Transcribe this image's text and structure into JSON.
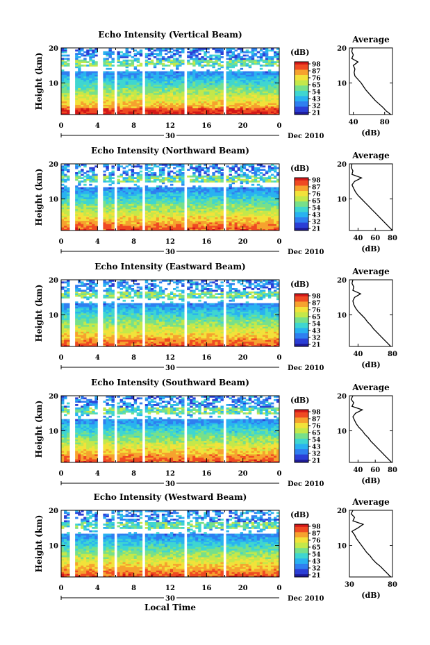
{
  "figure": {
    "xlabel": "Local Time",
    "date_label": "Dec 2010",
    "day_label": "30",
    "colorbar_unit": "(dB)",
    "avg_xlabel": "(dB)",
    "avg_title": "Average",
    "ylabel": "Height (km)",
    "height_ticks": [
      "20",
      "10"
    ],
    "time_ticks": [
      "0",
      "4",
      "8",
      "12",
      "16",
      "20",
      "0"
    ]
  },
  "colors": {
    "colormap": [
      "#1e1a96",
      "#2b3fd6",
      "#2f7ff0",
      "#29b2f0",
      "#3fd6d0",
      "#77e08a",
      "#c4e84a",
      "#f2e23a",
      "#f6a22e",
      "#ef4a22",
      "#d41818"
    ]
  },
  "chart_data": [
    {
      "type": "heatmap",
      "title": "Echo Intensity (Vertical Beam)",
      "xlabel": "Local Time",
      "ylabel": "Height (km)",
      "xlim": [
        0,
        24
      ],
      "ylim": [
        1,
        20
      ],
      "gaps_hours": [
        [
          1.0,
          1.5
        ],
        [
          4.0,
          4.6
        ],
        [
          5.7,
          6.2
        ],
        [
          8.8,
          9.3
        ],
        [
          13.4,
          13.9
        ],
        [
          17.8,
          18.3
        ]
      ],
      "colorbar": {
        "label": "(dB)",
        "ticks": [
          "98",
          "87",
          "76",
          "65",
          "54",
          "43",
          "32",
          "21"
        ]
      },
      "average_profile": {
        "title": "Average",
        "xlabel": "(dB)",
        "xticks": [
          40,
          80
        ],
        "xlim": [
          35,
          90
        ],
        "height_km": [
          1,
          2,
          3,
          4,
          5,
          6,
          7,
          8,
          9,
          10,
          11,
          12,
          13,
          14,
          15,
          16,
          17,
          18,
          19,
          20
        ],
        "db": [
          88,
          82,
          78,
          73,
          68,
          64,
          60,
          56,
          53,
          50,
          46,
          42,
          41,
          42,
          40,
          46,
          38,
          40,
          38,
          39
        ]
      }
    },
    {
      "type": "heatmap",
      "title": "Echo Intensity (Northward Beam)",
      "xlabel": "Local Time",
      "ylabel": "Height (km)",
      "xlim": [
        0,
        24
      ],
      "ylim": [
        1,
        20
      ],
      "gaps_hours": [
        [
          1.0,
          1.5
        ],
        [
          4.0,
          4.6
        ],
        [
          5.7,
          6.2
        ],
        [
          8.8,
          9.3
        ],
        [
          13.4,
          13.9
        ],
        [
          17.8,
          18.3
        ]
      ],
      "colorbar": {
        "label": "(dB)",
        "ticks": [
          "98",
          "87",
          "76",
          "65",
          "54",
          "43",
          "32",
          "21"
        ]
      },
      "average_profile": {
        "title": "Average",
        "xlabel": "(dB)",
        "xticks": [
          40,
          60,
          80
        ],
        "xlim": [
          30,
          80
        ],
        "height_km": [
          1,
          2,
          3,
          4,
          5,
          6,
          7,
          8,
          9,
          10,
          11,
          12,
          13,
          14,
          15,
          16,
          17,
          18,
          19,
          20
        ],
        "db": [
          80,
          76,
          72,
          68,
          64,
          60,
          56,
          52,
          48,
          44,
          40,
          37,
          35,
          33,
          36,
          44,
          33,
          34,
          32,
          33
        ]
      }
    },
    {
      "type": "heatmap",
      "title": "Echo Intensity (Eastward Beam)",
      "xlabel": "Local Time",
      "ylabel": "Height (km)",
      "xlim": [
        0,
        24
      ],
      "ylim": [
        1,
        20
      ],
      "gaps_hours": [
        [
          1.0,
          1.5
        ],
        [
          4.0,
          4.6
        ],
        [
          5.7,
          6.2
        ],
        [
          8.8,
          9.3
        ],
        [
          13.4,
          13.9
        ],
        [
          17.8,
          18.3
        ]
      ],
      "colorbar": {
        "label": "(dB)",
        "ticks": [
          "98",
          "87",
          "76",
          "65",
          "54",
          "43",
          "32",
          "21"
        ]
      },
      "average_profile": {
        "title": "Average",
        "xlabel": "(dB)",
        "xticks": [
          40,
          80
        ],
        "xlim": [
          30,
          80
        ],
        "height_km": [
          1,
          2,
          3,
          4,
          5,
          6,
          7,
          8,
          9,
          10,
          11,
          12,
          13,
          14,
          15,
          16,
          17,
          18,
          19,
          20
        ],
        "db": [
          78,
          74,
          70,
          66,
          62,
          58,
          55,
          51,
          48,
          44,
          40,
          37,
          35,
          34,
          36,
          43,
          34,
          35,
          33,
          34
        ]
      }
    },
    {
      "type": "heatmap",
      "title": "Echo Intensity (Southward Beam)",
      "xlabel": "Local Time",
      "ylabel": "Height (km)",
      "xlim": [
        0,
        24
      ],
      "ylim": [
        1,
        20
      ],
      "gaps_hours": [
        [
          1.0,
          1.5
        ],
        [
          4.0,
          4.6
        ],
        [
          5.7,
          6.2
        ],
        [
          8.8,
          9.3
        ],
        [
          13.4,
          13.9
        ],
        [
          17.8,
          18.3
        ]
      ],
      "colorbar": {
        "label": "(dB)",
        "ticks": [
          "98",
          "87",
          "76",
          "65",
          "54",
          "43",
          "32",
          "21"
        ]
      },
      "average_profile": {
        "title": "Average",
        "xlabel": "(dB)",
        "xticks": [
          40,
          60,
          80
        ],
        "xlim": [
          30,
          80
        ],
        "height_km": [
          1,
          2,
          3,
          4,
          5,
          6,
          7,
          8,
          9,
          10,
          11,
          12,
          13,
          14,
          15,
          16,
          17,
          18,
          19,
          20
        ],
        "db": [
          79,
          75,
          71,
          67,
          63,
          59,
          55,
          52,
          48,
          45,
          41,
          38,
          36,
          34,
          37,
          45,
          33,
          35,
          32,
          34
        ]
      }
    },
    {
      "type": "heatmap",
      "title": "Echo Intensity (Westward Beam)",
      "xlabel": "Local Time",
      "ylabel": "Height (km)",
      "xlim": [
        0,
        24
      ],
      "ylim": [
        1,
        20
      ],
      "gaps_hours": [
        [
          1.0,
          1.5
        ],
        [
          4.0,
          4.6
        ],
        [
          5.7,
          6.2
        ],
        [
          8.8,
          9.3
        ],
        [
          13.4,
          13.9
        ],
        [
          17.8,
          18.3
        ]
      ],
      "colorbar": {
        "label": "(dB)",
        "ticks": [
          "98",
          "87",
          "76",
          "65",
          "54",
          "43",
          "32",
          "21"
        ]
      },
      "average_profile": {
        "title": "Average",
        "xlabel": "(dB)",
        "xticks": [
          30,
          80
        ],
        "xlim": [
          30,
          80
        ],
        "height_km": [
          1,
          2,
          3,
          4,
          5,
          6,
          7,
          8,
          9,
          10,
          11,
          12,
          13,
          14,
          15,
          16,
          17,
          18,
          19,
          20
        ],
        "db": [
          78,
          74,
          70,
          66,
          61,
          57,
          54,
          50,
          47,
          44,
          41,
          38,
          36,
          33,
          40,
          46,
          34,
          36,
          32,
          34
        ]
      }
    }
  ]
}
